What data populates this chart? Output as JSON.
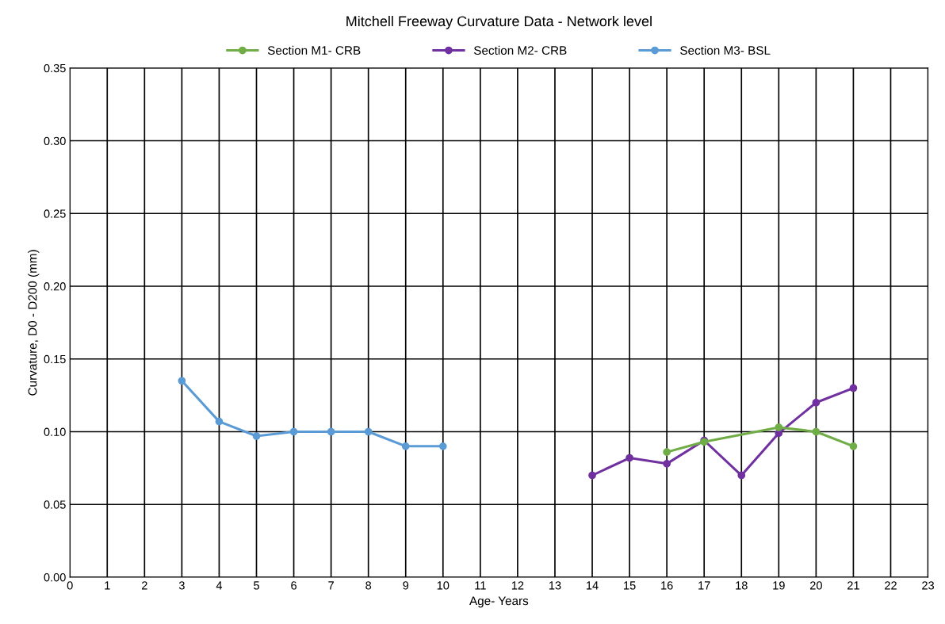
{
  "chart_data": {
    "type": "line",
    "title": "Mitchell Freeway Curvature Data - Network level",
    "xlabel": "Age- Years",
    "ylabel": "Curvature, D0 - D200 (mm)",
    "series": [
      {
        "name": "Section M1- CRB",
        "color": "#70ad47",
        "x": [
          16,
          17,
          19,
          20,
          21
        ],
        "values": [
          0.086,
          0.093,
          0.103,
          0.1,
          0.09
        ]
      },
      {
        "name": "Section M2- CRB",
        "color": "#7030a0",
        "x": [
          14,
          15,
          16,
          17,
          18,
          19,
          20,
          21
        ],
        "values": [
          0.07,
          0.082,
          0.078,
          0.094,
          0.07,
          0.099,
          0.12,
          0.13
        ]
      },
      {
        "name": "Section M3- BSL",
        "color": "#5b9bd5",
        "x": [
          3,
          4,
          5,
          6,
          7,
          8,
          9,
          10
        ],
        "values": [
          0.135,
          0.107,
          0.097,
          0.1,
          0.1,
          0.1,
          0.09,
          0.09
        ]
      }
    ],
    "xlim": [
      0,
      23
    ],
    "xticks": [
      0,
      1,
      2,
      3,
      4,
      5,
      6,
      7,
      8,
      9,
      10,
      11,
      12,
      13,
      14,
      15,
      16,
      17,
      18,
      19,
      20,
      21,
      22,
      23
    ],
    "ylim": [
      0,
      0.35
    ],
    "yticks": [
      {
        "value": 0,
        "label": "0.00"
      },
      {
        "value": 0.05,
        "label": "0.05"
      },
      {
        "value": 0.1,
        "label": "0.10"
      },
      {
        "value": 0.15,
        "label": "0.15"
      },
      {
        "value": 0.2,
        "label": "0.20"
      },
      {
        "value": 0.25,
        "label": "0.25"
      },
      {
        "value": 0.3,
        "label": "0.30"
      },
      {
        "value": 0.35,
        "label": "0.35"
      }
    ],
    "grid": true,
    "legend": "top",
    "marker": "circle",
    "line_style": "solid"
  }
}
